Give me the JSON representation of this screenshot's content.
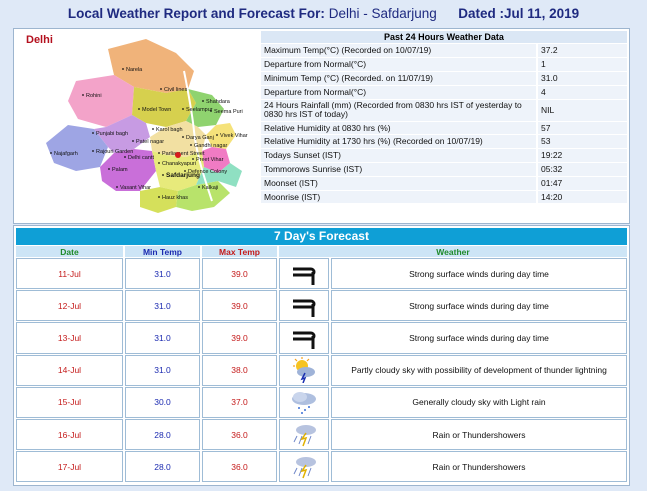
{
  "header": {
    "prefix": "Local Weather Report and Forecast For:",
    "location": "Delhi - Safdarjung",
    "dated": "Dated :Jul 11, 2019"
  },
  "map": {
    "title": "Delhi",
    "labels": [
      "Narela",
      "Rohini",
      "Civil lines",
      "Shahdara",
      "Model Town",
      "Seelampur",
      "Seema Puri",
      "Punjabi bagh",
      "Karol bagh",
      "Vivek Vihar",
      "Patel nagar",
      "Darya Ganj",
      "Rajouri Garden",
      "Gandhi nagar",
      "Delhi cantt",
      "Parliament Street",
      "Preet Vihar",
      "Najafgarh",
      "Chanakyapuri",
      "Palam",
      "Safdarjung",
      "Defence Colony",
      "Vasant Vihar",
      "Kalkaji",
      "Hauz khas"
    ]
  },
  "past24": {
    "heading": "Past 24 Hours Weather Data",
    "rows": [
      {
        "label": "Maximum Temp(°C) (Recorded on 10/07/19)",
        "value": "37.2"
      },
      {
        "label": "Departure from Normal(°C)",
        "value": "1"
      },
      {
        "label": "Minimum Temp (°C) (Recorded. on 11/07/19)",
        "value": "31.0"
      },
      {
        "label": "Departure from Normal(°C)",
        "value": "4"
      },
      {
        "label": "24 Hours Rainfall (mm) (Recorded from 0830 hrs IST of yesterday to 0830 hrs IST of today)",
        "value": "NIL"
      },
      {
        "label": "Relative Humidity at 0830 hrs (%)",
        "value": "57"
      },
      {
        "label": "Relative Humidity at 1730 hrs (%) (Recorded on 10/07/19)",
        "value": "53"
      },
      {
        "label": "Todays Sunset (IST)",
        "value": "19:22"
      },
      {
        "label": "Tommorows Sunrise (IST)",
        "value": "05:32"
      },
      {
        "label": "Moonset (IST)",
        "value": "01:47"
      },
      {
        "label": "Moonrise (IST)",
        "value": "14:20"
      }
    ]
  },
  "forecast": {
    "heading": "7 Day's Forecast",
    "columns": {
      "date": "Date",
      "min": "Min Temp",
      "max": "Max Temp",
      "weather": "Weather"
    },
    "days": [
      {
        "date": "11-Jul",
        "min": "31.0",
        "max": "39.0",
        "icon": "wind-icon",
        "desc": "Strong surface winds during day time"
      },
      {
        "date": "12-Jul",
        "min": "31.0",
        "max": "39.0",
        "icon": "wind-icon",
        "desc": "Strong surface winds during day time"
      },
      {
        "date": "13-Jul",
        "min": "31.0",
        "max": "39.0",
        "icon": "wind-icon",
        "desc": "Strong surface winds during day time"
      },
      {
        "date": "14-Jul",
        "min": "31.0",
        "max": "38.0",
        "icon": "partly-cloudy-thunder-icon",
        "desc": "Partly cloudy sky with possibility of development of thunder lightning"
      },
      {
        "date": "15-Jul",
        "min": "30.0",
        "max": "37.0",
        "icon": "cloudy-light-rain-icon",
        "desc": "Generally cloudy sky with Light rain"
      },
      {
        "date": "16-Jul",
        "min": "28.0",
        "max": "36.0",
        "icon": "thundershower-icon",
        "desc": "Rain or Thundershowers"
      },
      {
        "date": "17-Jul",
        "min": "28.0",
        "max": "36.0",
        "icon": "thundershower-icon",
        "desc": "Rain or Thundershowers"
      }
    ]
  }
}
